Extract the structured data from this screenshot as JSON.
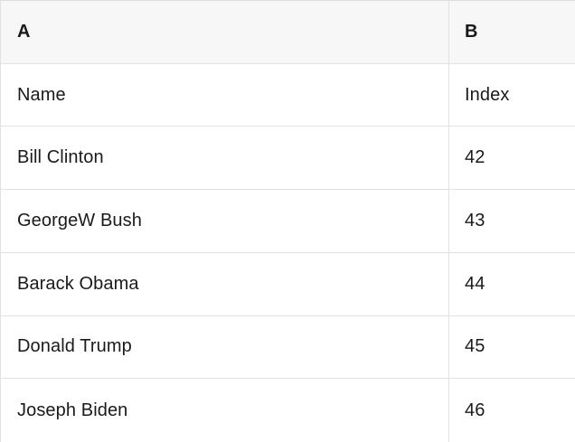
{
  "table": {
    "columns": [
      {
        "header": "A"
      },
      {
        "header": "B"
      }
    ],
    "rows": [
      {
        "A": "Name",
        "B": "Index"
      },
      {
        "A": "Bill Clinton",
        "B": "42"
      },
      {
        "A": "GeorgeW Bush",
        "B": "43"
      },
      {
        "A": "Barack Obama",
        "B": "44"
      },
      {
        "A": "Donald Trump",
        "B": "45"
      },
      {
        "A": "Joseph Biden",
        "B": "46"
      }
    ]
  },
  "colors": {
    "header_background": "#f7f7f7",
    "row_background": "#ffffff",
    "border": "#e2e2e2",
    "text": "#1a1a1a"
  }
}
